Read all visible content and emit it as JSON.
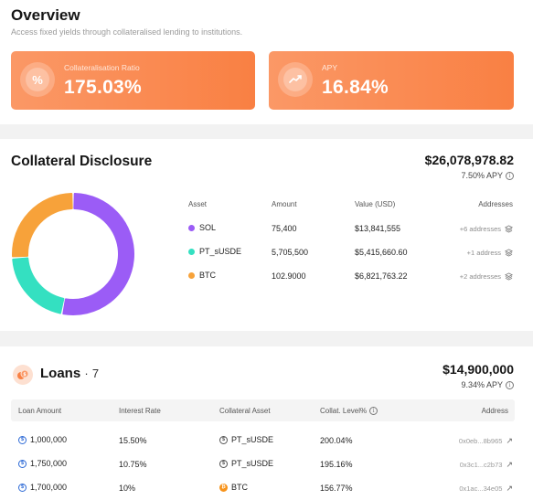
{
  "overview": {
    "title": "Overview",
    "subtitle": "Access fixed yields through collateralised lending to institutions.",
    "cards": [
      {
        "label": "Collateralisation Ratio",
        "value": "175.03%",
        "icon": "percent-icon",
        "icon_glyph": "%"
      },
      {
        "label": "APY",
        "value": "16.84%",
        "icon": "trend-up-icon"
      }
    ]
  },
  "collateral": {
    "title": "Collateral Disclosure",
    "total": "$26,078,978.82",
    "apy": "7.50% APY",
    "headers": {
      "asset": "Asset",
      "amount": "Amount",
      "value": "Value (USD)",
      "addresses": "Addresses"
    },
    "rows": [
      {
        "asset": "SOL",
        "amount": "75,400",
        "value": "$13,841,555",
        "addresses": "+6 addresses",
        "color": "#9b5cf6",
        "share": 0.53
      },
      {
        "asset": "PT_sUSDE",
        "amount": "5,705,500",
        "value": "$5,415,660.60",
        "addresses": "+1 address",
        "color": "#34e0c1",
        "share": 0.21
      },
      {
        "asset": "BTC",
        "amount": "102.9000",
        "value": "$6,821,763.22",
        "addresses": "+2 addresses",
        "color": "#f7a23a",
        "share": 0.26
      }
    ]
  },
  "loans": {
    "title": "Loans",
    "separator": "·",
    "count": "7",
    "total": "$14,900,000",
    "apy": "9.34% APY",
    "headers": {
      "amount": "Loan Amount",
      "rate": "Interest Rate",
      "asset": "Collateral Asset",
      "level": "Collat. Level%",
      "address": "Address"
    },
    "rows": [
      {
        "amount": "1,000,000",
        "rate": "15.50%",
        "asset": "PT_sUSDE",
        "asset_icon": "susde-coin-icon",
        "level": "200.04%",
        "address": "0x0eb...8b965"
      },
      {
        "amount": "1,750,000",
        "rate": "10.75%",
        "asset": "PT_sUSDE",
        "asset_icon": "susde-coin-icon",
        "level": "195.16%",
        "address": "0x3c1...c2b73"
      },
      {
        "amount": "1,700,000",
        "rate": "10%",
        "asset": "BTC",
        "asset_icon": "btc-coin-icon",
        "level": "156.77%",
        "address": "0x1ac...34e05"
      }
    ]
  }
}
